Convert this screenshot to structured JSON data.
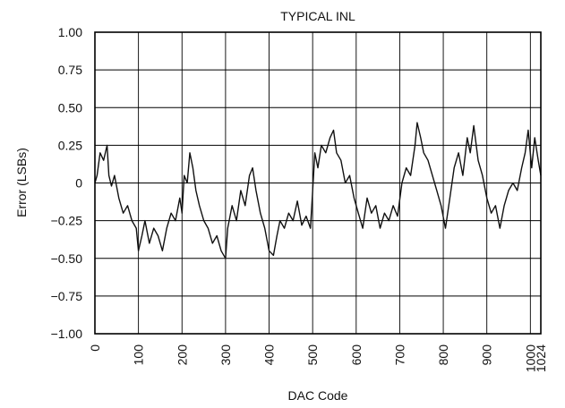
{
  "chart_data": {
    "type": "line",
    "title": "TYPICAL INL",
    "xlabel": "DAC Code",
    "ylabel": "Error (LSBs)",
    "xlim": [
      0,
      1024
    ],
    "ylim": [
      -1.0,
      1.0
    ],
    "grid": true,
    "y_ticks": [
      1.0,
      0.75,
      0.5,
      0.25,
      0,
      -0.25,
      -0.5,
      -0.75,
      -1.0
    ],
    "y_tick_labels": [
      "1.00",
      "0.75",
      "0.50",
      "0.25",
      "0",
      "−0.25",
      "−0.50",
      "−0.75",
      "−1.00"
    ],
    "x_ticks": [
      0,
      100,
      200,
      300,
      400,
      500,
      600,
      700,
      800,
      900,
      1000,
      1024
    ],
    "x_tick_labels": [
      "0",
      "100",
      "200",
      "300",
      "400",
      "500",
      "600",
      "700",
      "800",
      "900",
      "1000",
      "1024"
    ],
    "series": [
      {
        "x": [
          0,
          5,
          12,
          20,
          28,
          32,
          38,
          45,
          55,
          65,
          75,
          85,
          95,
          100,
          108,
          115,
          125,
          135,
          145,
          155,
          165,
          175,
          185,
          195,
          200,
          205,
          212,
          218,
          225,
          232,
          240,
          250,
          260,
          270,
          280,
          290,
          300,
          305,
          315,
          325,
          335,
          345,
          355,
          362,
          370,
          380,
          390,
          400,
          410,
          418,
          425,
          435,
          445,
          455,
          465,
          475,
          485,
          495,
          500,
          505,
          512,
          520,
          530,
          540,
          548,
          555,
          565,
          575,
          585,
          595,
          605,
          615,
          625,
          635,
          645,
          655,
          665,
          675,
          685,
          695,
          705,
          715,
          725,
          735,
          740,
          748,
          755,
          765,
          775,
          785,
          795,
          805,
          815,
          825,
          835,
          845,
          855,
          862,
          870,
          880,
          890,
          900,
          910,
          920,
          930,
          940,
          950,
          960,
          970,
          980,
          988,
          995,
          1003,
          1010,
          1018,
          1024
        ],
        "y": [
          0.0,
          0.05,
          0.2,
          0.15,
          0.25,
          0.05,
          -0.02,
          0.05,
          -0.1,
          -0.2,
          -0.15,
          -0.25,
          -0.3,
          -0.45,
          -0.35,
          -0.25,
          -0.4,
          -0.3,
          -0.35,
          -0.45,
          -0.3,
          -0.2,
          -0.25,
          -0.1,
          -0.2,
          0.05,
          0.0,
          0.2,
          0.1,
          -0.05,
          -0.15,
          -0.25,
          -0.3,
          -0.4,
          -0.35,
          -0.45,
          -0.5,
          -0.3,
          -0.15,
          -0.25,
          -0.05,
          -0.15,
          0.05,
          0.1,
          -0.05,
          -0.2,
          -0.3,
          -0.45,
          -0.48,
          -0.35,
          -0.25,
          -0.3,
          -0.2,
          -0.25,
          -0.12,
          -0.28,
          -0.22,
          -0.3,
          -0.05,
          0.2,
          0.1,
          0.25,
          0.2,
          0.3,
          0.35,
          0.2,
          0.15,
          0.0,
          0.05,
          -0.1,
          -0.2,
          -0.3,
          -0.1,
          -0.2,
          -0.15,
          -0.3,
          -0.2,
          -0.25,
          -0.15,
          -0.22,
          0.0,
          0.1,
          0.05,
          0.25,
          0.4,
          0.3,
          0.2,
          0.15,
          0.05,
          -0.05,
          -0.15,
          -0.3,
          -0.1,
          0.1,
          0.2,
          0.05,
          0.3,
          0.2,
          0.38,
          0.15,
          0.05,
          -0.1,
          -0.2,
          -0.15,
          -0.3,
          -0.15,
          -0.05,
          0.0,
          -0.05,
          0.1,
          0.2,
          0.35,
          0.1,
          0.3,
          0.15,
          0.05
        ]
      }
    ]
  }
}
